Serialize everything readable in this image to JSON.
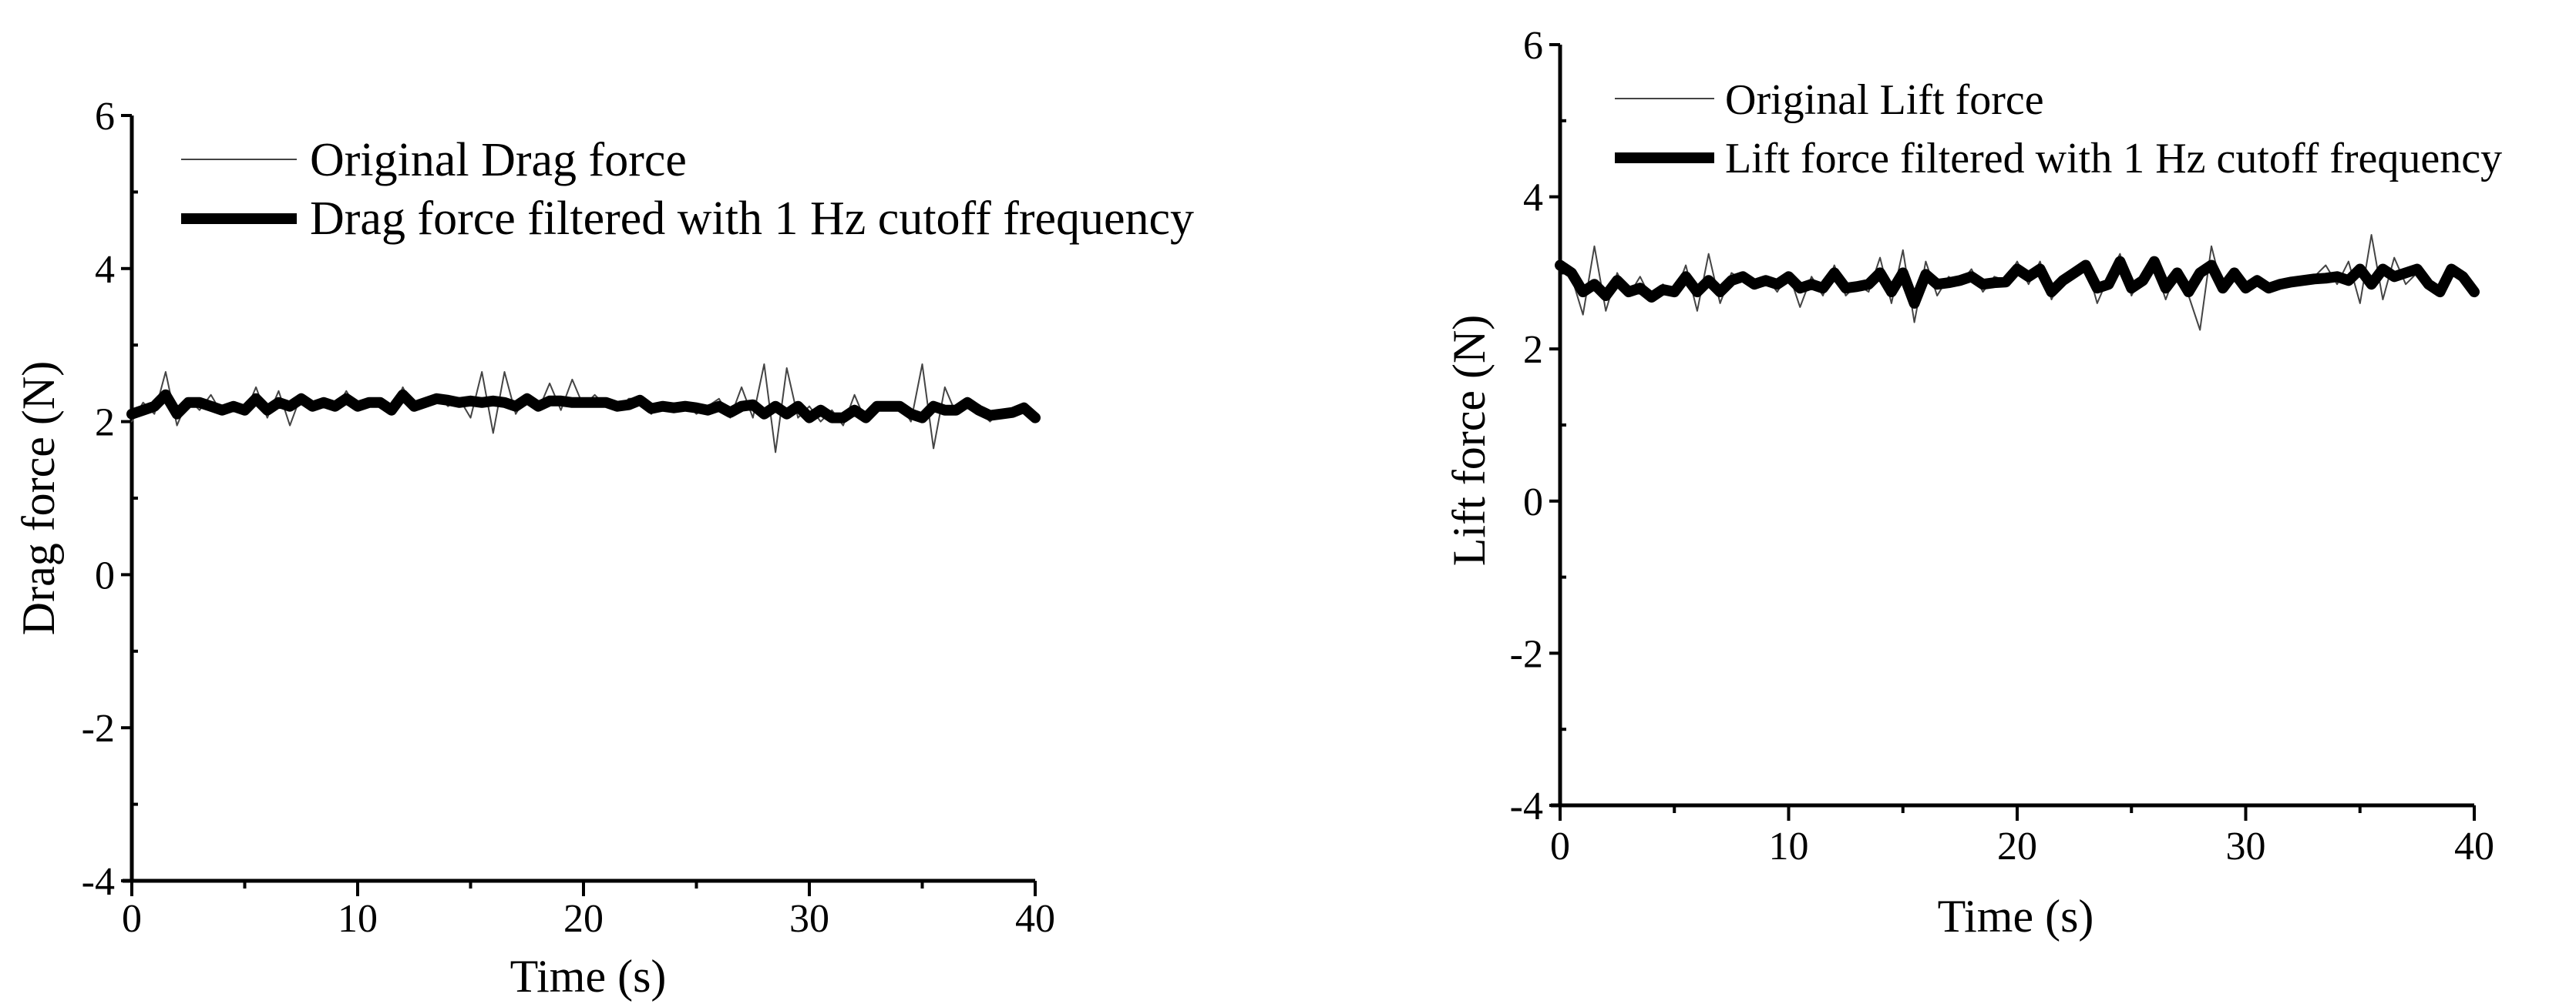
{
  "chart_data": [
    {
      "type": "line",
      "xlabel": "Time (s)",
      "ylabel": "Drag force (N)",
      "xlim": [
        0,
        40
      ],
      "ylim": [
        -4,
        6
      ],
      "xticks": [
        "0",
        "10",
        "20",
        "30",
        "40"
      ],
      "yticks": [
        "-4",
        "-2",
        "0",
        "2",
        "4",
        "6"
      ],
      "grid": false,
      "legend_position": "top-left",
      "x_step": 0.5,
      "series": [
        {
          "name": "Original Drag force",
          "style": "thin",
          "values": [
            2.0,
            2.25,
            2.1,
            2.65,
            1.95,
            2.3,
            2.15,
            2.35,
            2.1,
            2.2,
            2.1,
            2.45,
            2.05,
            2.4,
            1.95,
            2.35,
            2.15,
            2.3,
            2.15,
            2.4,
            2.15,
            2.3,
            2.2,
            2.1,
            2.45,
            2.15,
            2.3,
            2.35,
            2.2,
            2.3,
            2.05,
            2.65,
            1.85,
            2.65,
            2.1,
            2.35,
            2.15,
            2.5,
            2.15,
            2.55,
            2.2,
            2.35,
            2.2,
            2.15,
            2.3,
            2.3,
            2.1,
            2.25,
            2.15,
            2.25,
            2.1,
            2.2,
            2.3,
            2.05,
            2.45,
            2.05,
            2.75,
            1.6,
            2.7,
            2.05,
            2.2,
            2.0,
            2.15,
            1.95,
            2.35,
            2.0,
            2.25,
            2.2,
            2.25,
            2.0,
            2.75,
            1.65,
            2.45,
            2.1,
            2.3,
            2.15,
            2.0,
            2.15,
            2.1,
            2.2,
            2.0
          ]
        },
        {
          "name": "Drag force filtered with 1 Hz cutoff frequency",
          "style": "thick",
          "values": [
            2.1,
            2.15,
            2.2,
            2.35,
            2.1,
            2.25,
            2.25,
            2.2,
            2.15,
            2.2,
            2.15,
            2.3,
            2.15,
            2.25,
            2.2,
            2.3,
            2.2,
            2.25,
            2.2,
            2.3,
            2.2,
            2.25,
            2.25,
            2.15,
            2.35,
            2.2,
            2.25,
            2.3,
            2.28,
            2.25,
            2.27,
            2.25,
            2.27,
            2.25,
            2.2,
            2.3,
            2.2,
            2.27,
            2.27,
            2.25,
            2.25,
            2.25,
            2.25,
            2.2,
            2.22,
            2.28,
            2.17,
            2.2,
            2.18,
            2.2,
            2.18,
            2.15,
            2.2,
            2.12,
            2.2,
            2.22,
            2.1,
            2.2,
            2.1,
            2.2,
            2.05,
            2.15,
            2.05,
            2.05,
            2.15,
            2.05,
            2.2,
            2.2,
            2.2,
            2.1,
            2.05,
            2.2,
            2.15,
            2.15,
            2.25,
            2.15,
            2.08,
            2.1,
            2.12,
            2.18,
            2.05
          ]
        }
      ]
    },
    {
      "type": "line",
      "xlabel": "Time (s)",
      "ylabel": "Lift force (N)",
      "xlim": [
        0,
        40
      ],
      "ylim": [
        -4,
        6
      ],
      "xticks": [
        "0",
        "10",
        "20",
        "30",
        "40"
      ],
      "yticks": [
        "-4",
        "-2",
        "0",
        "2",
        "4",
        "6"
      ],
      "grid": false,
      "legend_position": "top-left",
      "x_step": 0.5,
      "series": [
        {
          "name": "Original Lift force",
          "style": "thin",
          "values": [
            3.1,
            2.95,
            2.45,
            3.35,
            2.5,
            3.0,
            2.7,
            2.95,
            2.65,
            2.85,
            2.7,
            3.1,
            2.5,
            3.25,
            2.6,
            3.0,
            2.9,
            2.8,
            2.95,
            2.75,
            3.0,
            2.55,
            2.95,
            2.7,
            3.1,
            2.7,
            2.85,
            2.75,
            3.2,
            2.6,
            3.3,
            2.35,
            3.15,
            2.7,
            2.95,
            2.85,
            3.05,
            2.75,
            2.95,
            2.9,
            3.15,
            2.85,
            3.15,
            2.65,
            2.95,
            3.05,
            3.15,
            2.6,
            2.95,
            3.25,
            2.7,
            3.0,
            3.1,
            2.65,
            3.05,
            2.7,
            2.25,
            3.35,
            2.75,
            3.05,
            2.75,
            2.95,
            2.75,
            2.9,
            2.85,
            2.95,
            2.95,
            3.1,
            2.85,
            3.15,
            2.6,
            3.5,
            2.65,
            3.2,
            2.85,
            3.0,
            2.9,
            2.7,
            3.1,
            2.9,
            2.8
          ]
        },
        {
          "name": "Lift force filtered with 1 Hz cutoff frequency",
          "style": "thick",
          "values": [
            3.1,
            3.0,
            2.75,
            2.85,
            2.7,
            2.9,
            2.75,
            2.8,
            2.68,
            2.78,
            2.75,
            2.95,
            2.75,
            2.9,
            2.75,
            2.9,
            2.95,
            2.85,
            2.9,
            2.85,
            2.95,
            2.8,
            2.85,
            2.8,
            3.0,
            2.8,
            2.82,
            2.85,
            3.0,
            2.75,
            3.0,
            2.6,
            2.98,
            2.85,
            2.87,
            2.9,
            2.95,
            2.85,
            2.87,
            2.88,
            3.05,
            2.95,
            3.05,
            2.75,
            2.9,
            3.0,
            3.1,
            2.8,
            2.85,
            3.15,
            2.8,
            2.9,
            3.15,
            2.8,
            3.0,
            2.75,
            3.0,
            3.1,
            2.8,
            3.0,
            2.8,
            2.9,
            2.8,
            2.85,
            2.88,
            2.9,
            2.92,
            2.93,
            2.95,
            2.9,
            3.05,
            2.85,
            3.05,
            2.95,
            3.0,
            3.05,
            2.85,
            2.75,
            3.05,
            2.95,
            2.75
          ]
        }
      ]
    }
  ]
}
